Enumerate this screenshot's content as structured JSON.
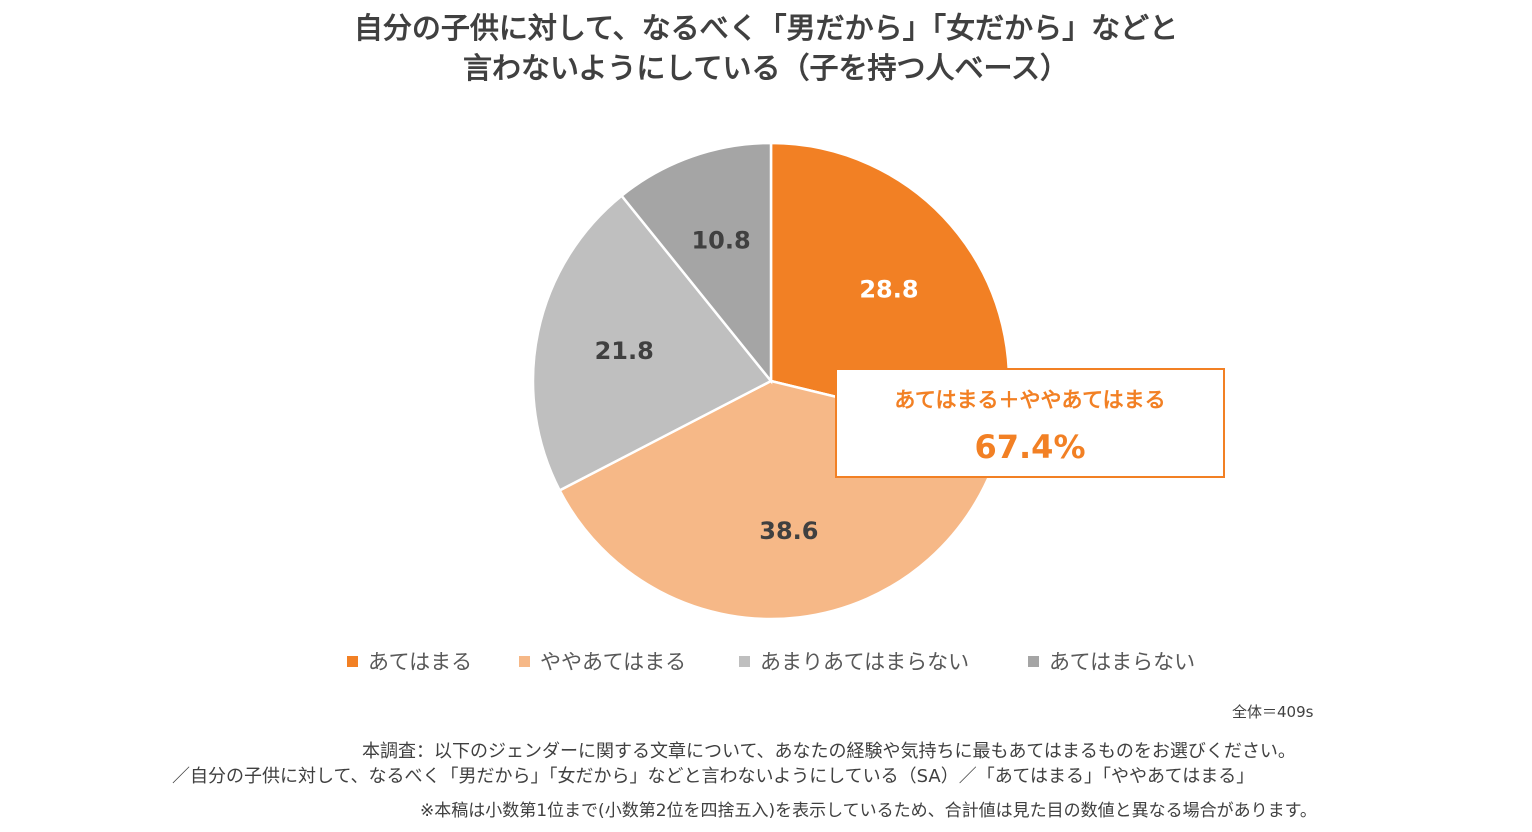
{
  "chart_data": {
    "type": "pie",
    "title_lines": [
      "自分の子供に対して、なるべく「男だから」「女だから」などと",
      "言わないようにしている（子を持つ人ベース）"
    ],
    "categories": [
      "あてはまる",
      "ややあてはまる",
      "あまりあてはまらない",
      "あてはまらない"
    ],
    "values": [
      28.8,
      38.6,
      21.8,
      10.8
    ],
    "value_labels": [
      "28.8",
      "38.6",
      "21.8",
      "10.8"
    ],
    "colors": [
      "#f28024",
      "#f6b887",
      "#bfbfbf",
      "#a5a5a5"
    ],
    "label_colors": [
      "#ffffff",
      "#404040",
      "#404040",
      "#404040"
    ],
    "start_angle_deg": 0,
    "direction": "clockwise",
    "legend_position": "bottom",
    "callout": {
      "label": "あてはまる＋ややあてはまる",
      "value": "67.4%",
      "color": "#f28024"
    }
  },
  "footer": {
    "base": "全体＝409s",
    "note1": "本調査：以下のジェンダーに関する文章について、あなたの経験や気持ちに最もあてはまるものをお選びください。",
    "note2": "／自分の子供に対して、なるべく「男だから」「女だから」などと言わないようにしている（SA）／「あてはまる」「ややあてはまる」",
    "note3": "※本稿は小数第1位まで(小数第2位を四捨五入)を表示しているため、合計値は見た目の数値と異なる場合があります。"
  }
}
